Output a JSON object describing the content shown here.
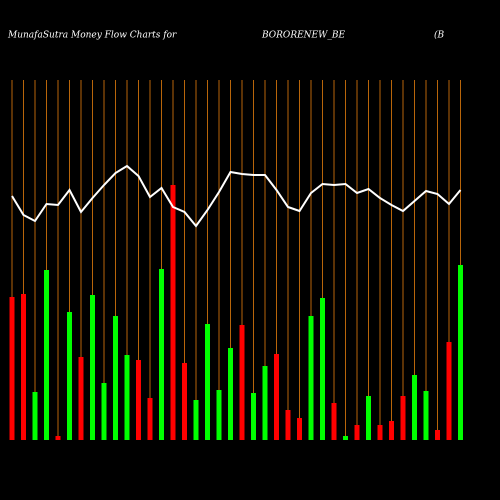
{
  "chart_data": {
    "type": "bar-line",
    "title": "MunafaSutra  Money Flow  Charts for",
    "symbol": "BORORENEW_BE",
    "subtitle": "(B",
    "ylim": [
      0,
      360
    ],
    "grid_color": "#b8650a",
    "line_color": "#ffffff",
    "series": [
      {
        "name": "Money Flow",
        "values": [
          143,
          146,
          48,
          170,
          4,
          128,
          83,
          145,
          57,
          124,
          85,
          80,
          42,
          171,
          255,
          77,
          40,
          116,
          50,
          92,
          115,
          47,
          74,
          86,
          30,
          22,
          124,
          142,
          37,
          4,
          15,
          44,
          15,
          19,
          44,
          65,
          49,
          10,
          98,
          175
        ],
        "colors": [
          "#ff0000",
          "#ff0000",
          "#00ff00",
          "#00ff00",
          "#ff0000",
          "#00ff00",
          "#ff0000",
          "#00ff00",
          "#00ff00",
          "#00ff00",
          "#00ff00",
          "#ff0000",
          "#ff0000",
          "#00ff00",
          "#ff0000",
          "#ff0000",
          "#00ff00",
          "#00ff00",
          "#00ff00",
          "#00ff00",
          "#ff0000",
          "#00ff00",
          "#00ff00",
          "#ff0000",
          "#ff0000",
          "#ff0000",
          "#00ff00",
          "#00ff00",
          "#ff0000",
          "#00ff00",
          "#ff0000",
          "#00ff00",
          "#ff0000",
          "#ff0000",
          "#ff0000",
          "#00ff00",
          "#00ff00",
          "#ff0000",
          "#ff0000",
          "#00ff00"
        ]
      },
      {
        "name": "Price",
        "values": [
          244,
          225,
          219,
          236,
          235,
          250,
          228,
          242,
          255,
          267,
          274,
          264,
          243,
          252,
          233,
          228,
          214,
          230,
          248,
          268,
          266,
          265,
          265,
          250,
          233,
          229,
          247,
          256,
          255,
          256,
          247,
          251,
          242,
          235,
          229,
          239,
          249,
          246,
          236,
          250
        ]
      }
    ]
  }
}
